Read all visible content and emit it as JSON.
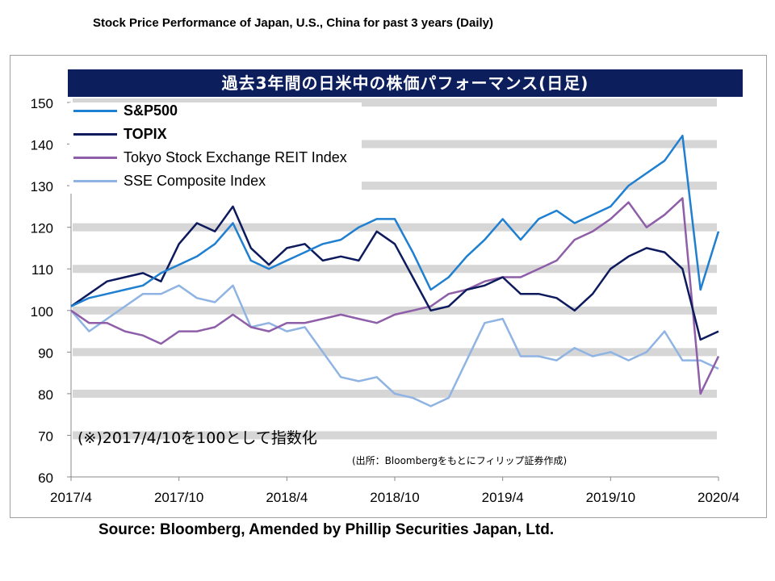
{
  "header_title": "Stock Price Performance of Japan, U.S., China for past 3 years (Daily)",
  "jp_title": "過去3年間の日米中の株価パフォーマンス(日足)",
  "note": "(※)2017/4/10を100として指数化",
  "credit": "(出所：Bloombergをもとにフィリップ証券作成)",
  "source": "Source: Bloomberg, Amended by Phillip Securities Japan, Ltd.",
  "chart_data": {
    "type": "line",
    "title": "過去3年間の日米中の株価パフォーマンス(日足)",
    "ylim": [
      60,
      150
    ],
    "yticks": [
      "60",
      "70",
      "80",
      "90",
      "100",
      "110",
      "120",
      "130",
      "140",
      "150"
    ],
    "xticks": [
      "2017/4",
      "2017/10",
      "2018/4",
      "2018/10",
      "2019/4",
      "2019/10",
      "2020/4"
    ],
    "grid": true,
    "legend": "top-left",
    "x": [
      "2017/4",
      "2017/5",
      "2017/6",
      "2017/7",
      "2017/8",
      "2017/9",
      "2017/10",
      "2017/11",
      "2017/12",
      "2018/1",
      "2018/2",
      "2018/3",
      "2018/4",
      "2018/5",
      "2018/6",
      "2018/7",
      "2018/8",
      "2018/9",
      "2018/10",
      "2018/11",
      "2018/12",
      "2019/1",
      "2019/2",
      "2019/3",
      "2019/4",
      "2019/5",
      "2019/6",
      "2019/7",
      "2019/8",
      "2019/9",
      "2019/10",
      "2019/11",
      "2019/12",
      "2020/1",
      "2020/2",
      "2020/3",
      "2020/4"
    ],
    "series": [
      {
        "name": "S&P500",
        "color": "#1f7fd0",
        "bold": true,
        "values": [
          101,
          103,
          104,
          105,
          106,
          109,
          111,
          113,
          116,
          121,
          112,
          110,
          112,
          114,
          116,
          117,
          120,
          122,
          122,
          114,
          105,
          108,
          113,
          117,
          122,
          117,
          122,
          124,
          121,
          123,
          125,
          130,
          133,
          136,
          142,
          105,
          119
        ]
      },
      {
        "name": "TOPIX",
        "color": "#0d1b5e",
        "bold": true,
        "values": [
          101,
          104,
          107,
          108,
          109,
          107,
          116,
          121,
          119,
          125,
          115,
          111,
          115,
          116,
          112,
          113,
          112,
          119,
          116,
          108,
          100,
          101,
          105,
          106,
          108,
          104,
          104,
          103,
          100,
          104,
          110,
          113,
          115,
          114,
          110,
          93,
          95
        ]
      },
      {
        "name": "Tokyo Stock Exchange REIT Index",
        "color": "#8e5ea8",
        "bold": false,
        "values": [
          100,
          97,
          97,
          95,
          94,
          92,
          95,
          95,
          96,
          99,
          96,
          95,
          97,
          97,
          98,
          99,
          98,
          97,
          99,
          100,
          101,
          104,
          105,
          107,
          108,
          108,
          110,
          112,
          117,
          119,
          122,
          126,
          120,
          123,
          127,
          80,
          89
        ]
      },
      {
        "name": "SSE Composite Index",
        "color": "#8fb4e3",
        "bold": false,
        "values": [
          100,
          95,
          98,
          101,
          104,
          104,
          106,
          103,
          102,
          106,
          96,
          97,
          95,
          96,
          90,
          84,
          83,
          84,
          80,
          79,
          77,
          79,
          88,
          97,
          98,
          89,
          89,
          88,
          91,
          89,
          90,
          88,
          90,
          95,
          88,
          88,
          86
        ]
      }
    ]
  }
}
